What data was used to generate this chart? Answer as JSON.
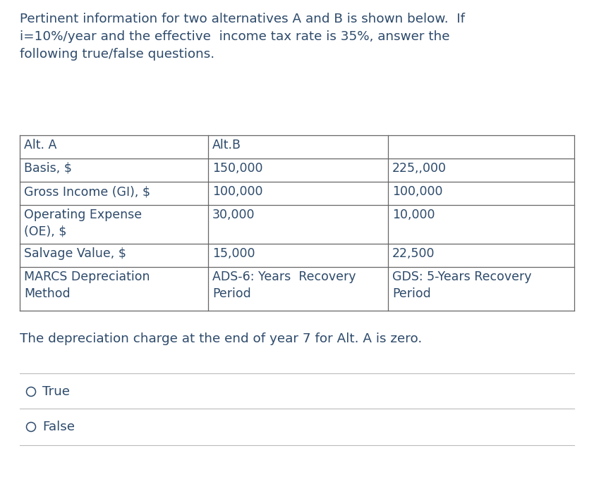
{
  "header_text": "Pertinent information for two alternatives A and B is shown below.  If\ni=10%/year and the effective  income tax rate is 35%, answer the\nfollowing true/false questions.",
  "table": {
    "col0": [
      "Alt. A",
      "Basis, $",
      "Gross Income (GI), $",
      "Operating Expense\n(OE), $",
      "Salvage Value, $",
      "MARCS Depreciation\nMethod"
    ],
    "col1": [
      "Alt.B",
      "150,000",
      "100,000",
      "30,000",
      "15,000",
      "ADS-6: Years  Recovery\nPeriod"
    ],
    "col2": [
      "",
      "225,,000",
      "100,000",
      "10,000",
      "22,500",
      "GDS: 5-Years Recovery\nPeriod"
    ]
  },
  "question": "The depreciation charge at the end of year 7 for Alt. A is zero.",
  "options": [
    "True",
    "False"
  ],
  "bg_color": "#ffffff",
  "text_color": "#2d4a6b",
  "table_font_size": 12.5,
  "header_font_size": 13.2,
  "line_color": "#666666",
  "sep_color": "#bbbbbb"
}
